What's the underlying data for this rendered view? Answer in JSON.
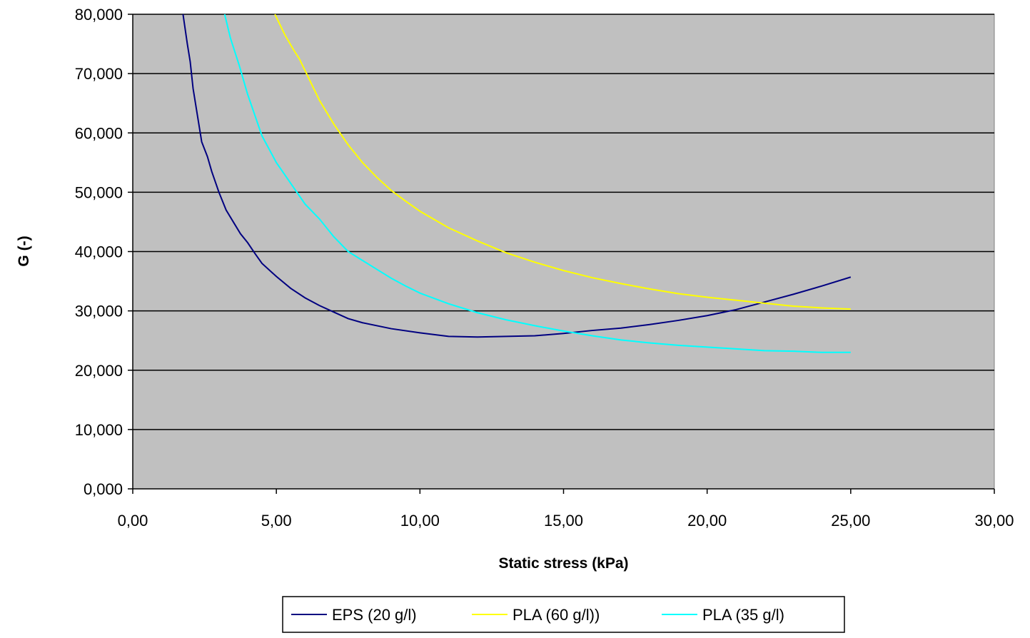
{
  "chart_data": {
    "type": "line",
    "title": "",
    "xlabel": "Static stress (kPa)",
    "ylabel": "G (-)",
    "xlim": [
      0,
      30
    ],
    "ylim": [
      0,
      80000
    ],
    "x_ticks": [
      0,
      5,
      10,
      15,
      20,
      25,
      30
    ],
    "x_tick_labels": [
      "0,00",
      "5,00",
      "10,00",
      "15,00",
      "20,00",
      "25,00",
      "30,00"
    ],
    "y_ticks": [
      0,
      10000,
      20000,
      30000,
      40000,
      50000,
      60000,
      70000,
      80000
    ],
    "y_tick_labels": [
      "0,000",
      "10,000",
      "20,000",
      "30,000",
      "40,000",
      "50,000",
      "60,000",
      "70,000",
      "80,000"
    ],
    "grid": "horizontal",
    "plot_background": "#c0c0c0",
    "legend_position": "bottom",
    "series": [
      {
        "name": "EPS (20 g/l)",
        "color": "#000080",
        "points": [
          [
            1.75,
            80000
          ],
          [
            1.9,
            75000
          ],
          [
            2.0,
            72000
          ],
          [
            2.1,
            67500
          ],
          [
            2.25,
            63000
          ],
          [
            2.4,
            58500
          ],
          [
            2.6,
            56000
          ],
          [
            2.75,
            53500
          ],
          [
            3.0,
            50000
          ],
          [
            3.25,
            47000
          ],
          [
            3.5,
            45000
          ],
          [
            3.75,
            43000
          ],
          [
            4.0,
            41500
          ],
          [
            4.25,
            39700
          ],
          [
            4.5,
            38000
          ],
          [
            5.0,
            35800
          ],
          [
            5.5,
            33800
          ],
          [
            6.0,
            32200
          ],
          [
            6.5,
            30900
          ],
          [
            7.0,
            29800
          ],
          [
            7.5,
            28700
          ],
          [
            8.0,
            28000
          ],
          [
            9.0,
            27000
          ],
          [
            10.0,
            26300
          ],
          [
            11.0,
            25700
          ],
          [
            12.0,
            25600
          ],
          [
            13.0,
            25700
          ],
          [
            14.0,
            25800
          ],
          [
            15.0,
            26200
          ],
          [
            16.0,
            26700
          ],
          [
            17.0,
            27100
          ],
          [
            18.0,
            27700
          ],
          [
            19.0,
            28400
          ],
          [
            20.0,
            29200
          ],
          [
            21.0,
            30200
          ],
          [
            22.0,
            31500
          ],
          [
            23.0,
            32800
          ],
          [
            24.0,
            34200
          ],
          [
            25.0,
            35700
          ]
        ]
      },
      {
        "name": "PLA (60 g/l))",
        "color": "#ffff00",
        "points": [
          [
            4.95,
            80000
          ],
          [
            5.1,
            78500
          ],
          [
            5.3,
            76500
          ],
          [
            5.6,
            74000
          ],
          [
            5.8,
            72500
          ],
          [
            6.0,
            70500
          ],
          [
            6.3,
            67500
          ],
          [
            6.5,
            65500
          ],
          [
            7.0,
            61500
          ],
          [
            7.5,
            58000
          ],
          [
            8.0,
            55000
          ],
          [
            8.5,
            52500
          ],
          [
            9.0,
            50300
          ],
          [
            9.5,
            48500
          ],
          [
            10.0,
            46800
          ],
          [
            11.0,
            44000
          ],
          [
            12.0,
            41800
          ],
          [
            13.0,
            39800
          ],
          [
            14.0,
            38200
          ],
          [
            15.0,
            36800
          ],
          [
            16.0,
            35600
          ],
          [
            17.0,
            34600
          ],
          [
            18.0,
            33700
          ],
          [
            19.0,
            32900
          ],
          [
            20.0,
            32300
          ],
          [
            21.0,
            31800
          ],
          [
            22.0,
            31300
          ],
          [
            23.0,
            30800
          ],
          [
            24.0,
            30500
          ],
          [
            25.0,
            30300
          ]
        ]
      },
      {
        "name": "PLA (35 g/l)",
        "color": "#00ffff",
        "points": [
          [
            3.2,
            80000
          ],
          [
            3.4,
            76000
          ],
          [
            3.7,
            71500
          ],
          [
            4.0,
            66500
          ],
          [
            4.25,
            63000
          ],
          [
            4.5,
            59500
          ],
          [
            5.0,
            55000
          ],
          [
            5.5,
            51500
          ],
          [
            6.0,
            48000
          ],
          [
            6.5,
            45500
          ],
          [
            7.0,
            42500
          ],
          [
            7.5,
            40000
          ],
          [
            8.0,
            38500
          ],
          [
            8.5,
            37000
          ],
          [
            9.0,
            35500
          ],
          [
            9.5,
            34200
          ],
          [
            10.0,
            33000
          ],
          [
            11.0,
            31200
          ],
          [
            12.0,
            29700
          ],
          [
            13.0,
            28500
          ],
          [
            14.0,
            27500
          ],
          [
            15.0,
            26600
          ],
          [
            16.0,
            25800
          ],
          [
            17.0,
            25100
          ],
          [
            18.0,
            24600
          ],
          [
            19.0,
            24200
          ],
          [
            20.0,
            23900
          ],
          [
            21.0,
            23600
          ],
          [
            22.0,
            23300
          ],
          [
            23.0,
            23200
          ],
          [
            24.0,
            23000
          ],
          [
            25.0,
            23000
          ]
        ]
      }
    ]
  }
}
